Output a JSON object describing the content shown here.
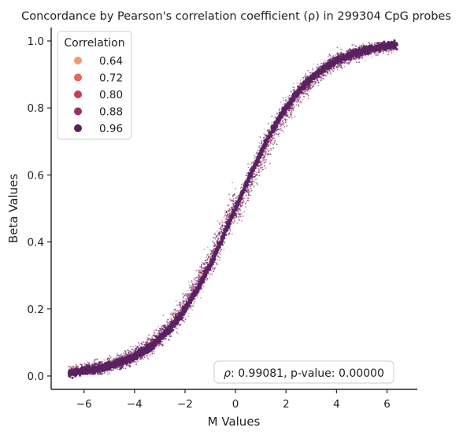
{
  "chart_data": {
    "type": "scatter",
    "title": "Concordance by Pearson's correlation coefficient (ρ) in 299304 CpG probes",
    "xlabel": "M Values",
    "ylabel": "Beta Values",
    "xlim": [
      -7.3,
      7.2
    ],
    "ylim": [
      -0.04,
      1.04
    ],
    "xticks": [
      -6,
      -4,
      -2,
      0,
      2,
      4,
      6
    ],
    "xtick_labels": [
      "−6",
      "−4",
      "−2",
      "0",
      "2",
      "4",
      "6"
    ],
    "yticks": [
      0.0,
      0.2,
      0.4,
      0.6,
      0.8,
      1.0
    ],
    "ytick_labels": [
      "0.0",
      "0.2",
      "0.4",
      "0.6",
      "0.8",
      "1.0"
    ],
    "grid": false,
    "legend": {
      "title": "Correlation",
      "placement": "top-left",
      "entries": [
        {
          "label": "0.64",
          "color": "#ec9c73"
        },
        {
          "label": "0.72",
          "color": "#e2685c"
        },
        {
          "label": "0.80",
          "color": "#c73c5b"
        },
        {
          "label": "0.88",
          "color": "#9a2f6b"
        },
        {
          "label": "0.96",
          "color": "#5a2160"
        }
      ]
    },
    "relationship": "beta = 2^M / (2^M + 1)",
    "x_range": [
      -6.6,
      6.4
    ],
    "annotation": {
      "rho_symbol": "ρ",
      "text": ": 0.99081, p-value: 0.00000",
      "placement": "bottom-right"
    }
  }
}
